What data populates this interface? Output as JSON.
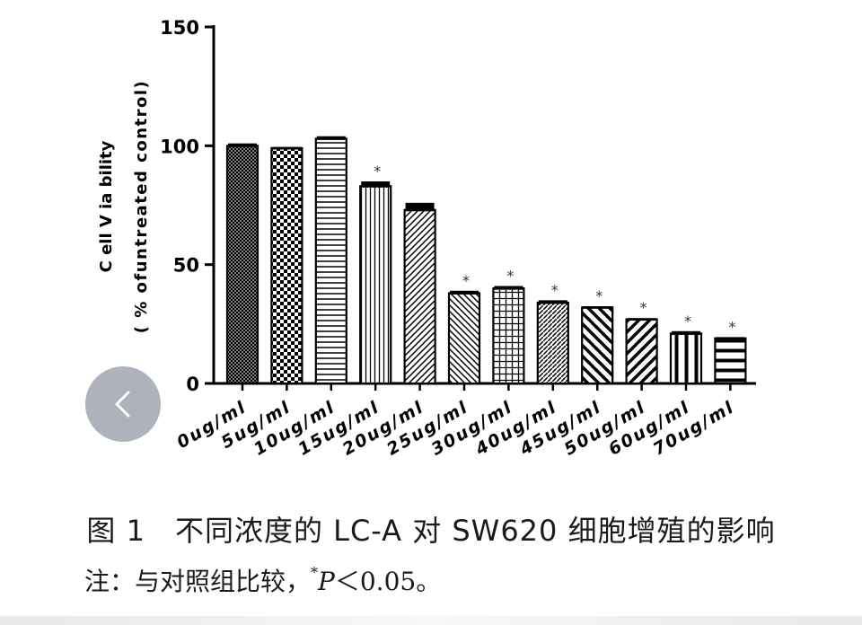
{
  "chart_data": {
    "type": "bar",
    "categories": [
      "0ug/ml",
      "5ug/ml",
      "10ug/ml",
      "15ug/ml",
      "20ug/ml",
      "25ug/ml",
      "30ug/ml",
      "40ug/ml",
      "45ug/ml",
      "50ug/ml",
      "60ug/ml",
      "70ug/ml"
    ],
    "values": [
      100,
      99,
      103,
      83,
      73,
      38,
      40,
      34,
      32,
      27,
      21,
      19
    ],
    "errors": [
      1,
      0.5,
      1,
      2,
      3,
      1,
      1,
      1,
      0.5,
      0.5,
      1,
      0.5
    ],
    "significant": [
      false,
      false,
      false,
      true,
      false,
      true,
      true,
      true,
      true,
      true,
      true,
      true
    ],
    "significance_mark": "*",
    "ylabel_line1": "C ell  V ia  bility",
    "ylabel_line2": "( %  ofuntreated control)",
    "ylim": [
      0,
      150
    ],
    "yticks": [
      "0",
      "50",
      "100",
      "150"
    ],
    "patterns": [
      "crosshatch-fine",
      "checker",
      "horizontal",
      "vertical",
      "diagonal-right",
      "diagonal-left",
      "grid",
      "diagonal-right-dense",
      "diagonal-left-wide",
      "diagonal-right-wide",
      "vertical-wide",
      "horizontal-wide"
    ]
  },
  "caption": "图 1　不同浓度的 LC-A 对 SW620 细胞增殖的影响",
  "note": {
    "prefix": "注：与对照组比较，",
    "star": "*",
    "p": "P",
    "rest": "＜0.05。"
  }
}
